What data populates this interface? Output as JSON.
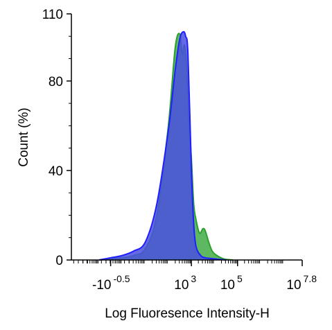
{
  "chart_data": {
    "type": "area",
    "title": "",
    "xlabel": "Log Fluoresence Intensity-H",
    "ylabel": "Count  (%)",
    "xscale": "biexponential",
    "xlim": [
      -2.2,
      7.8
    ],
    "ylim": [
      0,
      110
    ],
    "grid": false,
    "legend": "none",
    "x_ticks": [
      {
        "pos": -0.5,
        "base": "-10",
        "exp": "-0.5"
      },
      {
        "pos": 3,
        "base": "10",
        "exp": "3"
      },
      {
        "pos": 5,
        "base": "10",
        "exp": "5"
      },
      {
        "pos": 7.8,
        "base": "10",
        "exp": "7.8"
      }
    ],
    "y_ticks": [
      "0",
      "40",
      "80",
      "110"
    ],
    "series": [
      {
        "color": "#2ca02c",
        "fill": "#4caf50",
        "x": [
          -1.0,
          -0.5,
          0.0,
          0.5,
          1.0,
          1.5,
          2.0,
          2.3,
          2.5,
          2.6,
          2.7,
          2.8,
          2.9,
          3.0,
          3.1,
          3.2,
          3.35,
          3.5,
          3.6,
          3.75,
          3.9,
          4.1,
          4.4,
          4.8
        ],
        "y": [
          0,
          0.5,
          1,
          2,
          5,
          20,
          60,
          95,
          101,
          92,
          96,
          85,
          62,
          45,
          25,
          18,
          12,
          14,
          13,
          8,
          4,
          2,
          0.5,
          0
        ]
      },
      {
        "color": "#1f1fff",
        "fill": "#4a4fe0",
        "x": [
          -1.0,
          -0.5,
          0.0,
          0.5,
          1.0,
          1.5,
          2.0,
          2.3,
          2.5,
          2.65,
          2.75,
          2.85,
          3.0,
          3.1,
          3.2,
          3.4,
          3.6,
          4.0,
          4.5
        ],
        "y": [
          0,
          1,
          2,
          4,
          8,
          25,
          58,
          85,
          99,
          102,
          100,
          92,
          40,
          16,
          6,
          2,
          1,
          0.5,
          0
        ]
      }
    ]
  }
}
